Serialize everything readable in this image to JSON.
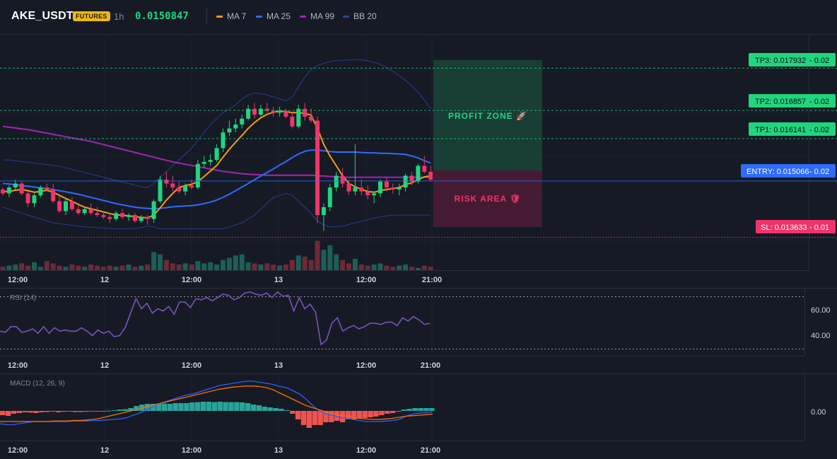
{
  "header": {
    "symbol": "AKE_USDT",
    "market_badge": "FUTURES",
    "interval": "1h",
    "last_price": "0.0150847",
    "indicators": [
      {
        "label": "MA 7",
        "color": "#f39c12"
      },
      {
        "label": "MA 25",
        "color": "#2f6bff"
      },
      {
        "label": "MA 99",
        "color": "#9c27b0"
      },
      {
        "label": "BB 20",
        "color": "#27459a"
      }
    ]
  },
  "levels": {
    "tp3": {
      "label": "TP3: 0.017932",
      "pct": "- 0.02",
      "price": 0.017932
    },
    "tp2": {
      "label": "TP2: 0.016857",
      "pct": "- 0.02",
      "price": 0.016857
    },
    "tp1": {
      "label": "TP1: 0.016141",
      "pct": "- 0.02",
      "price": 0.016141
    },
    "entry": {
      "label": "ENTRY: 0.015066",
      "pct": "- 0.02",
      "price": 0.015066
    },
    "sl": {
      "label": "SL: 0.013633",
      "pct": "- 0.01",
      "price": 0.013633
    }
  },
  "zones": {
    "profit_label": "PROFIT ZONE 🚀",
    "risk_label": "RISK AREA 🛡"
  },
  "time_axis": [
    "12:00",
    "12",
    "12:00",
    "13",
    "12:00",
    "21:00"
  ],
  "rsi": {
    "title": "RSI (14)",
    "axis_labels": [
      "60.00",
      "40.00"
    ],
    "upper": 70,
    "lower": 30,
    "values": [
      42,
      41,
      46,
      46,
      41,
      42,
      44,
      40,
      46,
      40,
      45,
      42,
      43,
      42,
      42,
      45,
      42,
      38,
      43,
      40,
      42,
      37,
      38,
      45,
      58,
      71,
      62,
      67,
      58,
      62,
      60,
      64,
      57,
      68,
      68,
      63,
      71,
      70,
      72,
      69,
      72,
      75,
      74,
      70,
      72,
      76,
      77,
      75,
      74,
      76,
      72,
      77,
      73,
      74,
      60,
      72,
      62,
      66,
      59,
      30,
      34,
      49,
      54,
      42,
      45,
      47,
      44,
      46,
      49,
      49,
      48,
      50,
      50,
      47,
      54,
      51,
      55,
      52,
      48,
      49
    ]
  },
  "macd": {
    "title": "MACD (12, 26, 9)",
    "axis_label": "0.00",
    "histogram": [
      -0.3,
      -0.35,
      -0.2,
      -0.15,
      -0.1,
      -0.12,
      -0.15,
      -0.1,
      -0.08,
      -0.05,
      -0.1,
      -0.06,
      -0.05,
      -0.08,
      -0.08,
      -0.06,
      -0.04,
      -0.04,
      -0.02,
      0.02,
      0.05,
      0.1,
      0.12,
      0.2,
      0.35,
      0.45,
      0.5,
      0.5,
      0.5,
      0.52,
      0.5,
      0.55,
      0.55,
      0.55,
      0.6,
      0.62,
      0.65,
      0.65,
      0.62,
      0.65,
      0.62,
      0.62,
      0.62,
      0.6,
      0.55,
      0.45,
      0.4,
      0.3,
      0.25,
      0.2,
      0.15,
      0.05,
      -0.2,
      -0.6,
      -1.0,
      -1.2,
      -1.0,
      -1.0,
      -0.8,
      -0.8,
      -0.7,
      -0.8,
      -0.6,
      -0.6,
      -0.55,
      -0.5,
      -0.45,
      -0.4,
      -0.3,
      -0.2,
      -0.15,
      -0.05,
      0.1,
      0.15,
      0.2,
      0.2,
      0.2,
      0.2
    ],
    "macd_line": [
      -1.2,
      -1.3,
      -1.3,
      -1.2,
      -1.1,
      -1.0,
      -1.0,
      -1.0,
      -1.0,
      -1.0,
      -1.0,
      -0.95,
      -0.95,
      -0.95,
      -0.9,
      -0.9,
      -0.85,
      -0.8,
      -0.75,
      -0.65,
      -0.4,
      -0.2,
      0.1,
      0.4,
      0.7,
      0.9,
      1.1,
      1.3,
      1.5,
      1.6,
      1.8,
      2.0,
      2.2,
      2.4,
      2.5,
      2.6,
      2.7,
      2.8,
      2.8,
      2.7,
      2.6,
      2.5,
      2.3,
      2.2,
      1.9,
      1.6,
      1.1,
      0.5,
      0.0,
      -0.3,
      -0.4,
      -0.6,
      -0.7,
      -0.8,
      -0.9,
      -1.0,
      -1.0,
      -1.0,
      -0.95,
      -0.9,
      -0.8,
      -0.5,
      -0.3,
      -0.2,
      -0.15,
      -0.1
    ],
    "signal_line": [
      -1.0,
      -1.0,
      -1.0,
      -1.0,
      -1.0,
      -1.0,
      -1.0,
      -1.0,
      -0.95,
      -0.95,
      -0.95,
      -0.9,
      -0.9,
      -0.85,
      -0.8,
      -0.7,
      -0.55,
      -0.4,
      -0.25,
      -0.1,
      0.05,
      0.2,
      0.4,
      0.55,
      0.7,
      0.85,
      1.0,
      1.15,
      1.3,
      1.45,
      1.6,
      1.75,
      1.9,
      2.05,
      2.15,
      2.25,
      2.3,
      2.35,
      2.35,
      2.3,
      2.2,
      2.0,
      1.7,
      1.4,
      1.1,
      0.8,
      0.5,
      0.3,
      0.1,
      -0.1,
      -0.25,
      -0.4,
      -0.5,
      -0.6,
      -0.7,
      -0.75,
      -0.8,
      -0.8,
      -0.75,
      -0.7,
      -0.6,
      -0.5,
      -0.45,
      -0.4,
      -0.35,
      -0.3
    ]
  },
  "chart_data": {
    "type": "candlestick",
    "y_range": [
      0.0128,
      0.0188
    ],
    "candles": [
      [
        0.01485,
        0.0149,
        0.0147,
        0.01475
      ],
      [
        0.01475,
        0.01495,
        0.01465,
        0.0149
      ],
      [
        0.0149,
        0.0151,
        0.01485,
        0.015
      ],
      [
        0.015,
        0.01505,
        0.0147,
        0.01475
      ],
      [
        0.01475,
        0.0148,
        0.0144,
        0.0145
      ],
      [
        0.0145,
        0.01475,
        0.0144,
        0.0147
      ],
      [
        0.0147,
        0.01495,
        0.01465,
        0.0149
      ],
      [
        0.0149,
        0.015,
        0.0148,
        0.01485
      ],
      [
        0.01485,
        0.015,
        0.0145,
        0.01455
      ],
      [
        0.01455,
        0.0147,
        0.01425,
        0.0143
      ],
      [
        0.0143,
        0.0146,
        0.0142,
        0.01455
      ],
      [
        0.01455,
        0.01465,
        0.0143,
        0.01435
      ],
      [
        0.01435,
        0.01445,
        0.0142,
        0.01425
      ],
      [
        0.01425,
        0.0144,
        0.0142,
        0.01435
      ],
      [
        0.01435,
        0.0145,
        0.0142,
        0.01425
      ],
      [
        0.01425,
        0.0144,
        0.01415,
        0.0142
      ],
      [
        0.0142,
        0.0143,
        0.0141,
        0.01415
      ],
      [
        0.01415,
        0.01425,
        0.014,
        0.0141
      ],
      [
        0.0141,
        0.0143,
        0.01405,
        0.01425
      ],
      [
        0.01425,
        0.01435,
        0.0141,
        0.01415
      ],
      [
        0.01415,
        0.01425,
        0.01405,
        0.0142
      ],
      [
        0.0142,
        0.01425,
        0.014,
        0.01405
      ],
      [
        0.01405,
        0.0142,
        0.014,
        0.01415
      ],
      [
        0.01415,
        0.0142,
        0.01395,
        0.0141
      ],
      [
        0.0141,
        0.0146,
        0.014,
        0.01455
      ],
      [
        0.01455,
        0.0152,
        0.0145,
        0.0151
      ],
      [
        0.0151,
        0.0153,
        0.0149,
        0.015
      ],
      [
        0.015,
        0.0152,
        0.0148,
        0.0149
      ],
      [
        0.0149,
        0.01505,
        0.01475,
        0.0148
      ],
      [
        0.0148,
        0.015,
        0.0147,
        0.01495
      ],
      [
        0.01495,
        0.0151,
        0.01485,
        0.0149
      ],
      [
        0.0149,
        0.0156,
        0.01485,
        0.0155
      ],
      [
        0.0155,
        0.0157,
        0.0154,
        0.01555
      ],
      [
        0.01555,
        0.01575,
        0.01545,
        0.0156
      ],
      [
        0.0156,
        0.016,
        0.01555,
        0.0159
      ],
      [
        0.0159,
        0.0164,
        0.0158,
        0.0163
      ],
      [
        0.0163,
        0.0166,
        0.0162,
        0.0164
      ],
      [
        0.0164,
        0.01665,
        0.0163,
        0.0165
      ],
      [
        0.0165,
        0.01675,
        0.0164,
        0.01665
      ],
      [
        0.01665,
        0.017,
        0.0166,
        0.0169
      ],
      [
        0.0169,
        0.01705,
        0.01665,
        0.01675
      ],
      [
        0.01675,
        0.017,
        0.0167,
        0.0169
      ],
      [
        0.0169,
        0.01705,
        0.0168,
        0.01685
      ],
      [
        0.01685,
        0.01695,
        0.0167,
        0.0168
      ],
      [
        0.0168,
        0.01695,
        0.0167,
        0.01685
      ],
      [
        0.01685,
        0.0169,
        0.01665,
        0.0167
      ],
      [
        0.0167,
        0.0168,
        0.0164,
        0.01645
      ],
      [
        0.01645,
        0.017,
        0.0164,
        0.0169
      ],
      [
        0.0169,
        0.01705,
        0.0166,
        0.0167
      ],
      [
        0.0167,
        0.0169,
        0.01655,
        0.0166
      ],
      [
        0.0166,
        0.0167,
        0.014,
        0.0142
      ],
      [
        0.0142,
        0.0145,
        0.0138,
        0.0144
      ],
      [
        0.0144,
        0.015,
        0.0143,
        0.0149
      ],
      [
        0.0149,
        0.0153,
        0.0148,
        0.0152
      ],
      [
        0.0152,
        0.0154,
        0.0149,
        0.015
      ],
      [
        0.015,
        0.0151,
        0.0147,
        0.0148
      ],
      [
        0.0148,
        0.016,
        0.0147,
        0.0149
      ],
      [
        0.0149,
        0.0151,
        0.0147,
        0.0148
      ],
      [
        0.0148,
        0.01495,
        0.0146,
        0.0147
      ],
      [
        0.0147,
        0.0148,
        0.0145,
        0.01475
      ],
      [
        0.01475,
        0.0151,
        0.01465,
        0.01505
      ],
      [
        0.01505,
        0.01515,
        0.0148,
        0.0149
      ],
      [
        0.0149,
        0.015,
        0.01475,
        0.01485
      ],
      [
        0.01485,
        0.015,
        0.0147,
        0.0149
      ],
      [
        0.0149,
        0.01525,
        0.0148,
        0.0152
      ],
      [
        0.0152,
        0.0153,
        0.01495,
        0.01505
      ],
      [
        0.01505,
        0.0155,
        0.015,
        0.01545
      ],
      [
        0.01545,
        0.0157,
        0.01525,
        0.0153
      ],
      [
        0.0153,
        0.01545,
        0.01505,
        0.0151
      ]
    ],
    "volume": [
      3,
      4,
      5,
      6,
      4,
      7,
      3,
      8,
      6,
      4,
      3,
      5,
      4,
      3,
      5,
      4,
      3,
      4,
      3,
      4,
      5,
      3,
      4,
      5,
      16,
      14,
      9,
      6,
      5,
      6,
      5,
      8,
      6,
      7,
      5,
      9,
      11,
      13,
      14,
      7,
      6,
      5,
      6,
      5,
      4,
      5,
      9,
      13,
      12,
      9,
      26,
      18,
      22,
      14,
      9,
      6,
      10,
      5,
      4,
      5,
      6,
      4,
      3,
      4,
      5,
      3,
      2,
      4,
      3
    ],
    "ma7": [
      0.0148,
      0.0148,
      0.01483,
      0.01485,
      0.01482,
      0.01478,
      0.0148,
      0.01483,
      0.01478,
      0.0147,
      0.01462,
      0.01455,
      0.01447,
      0.0144,
      0.01436,
      0.01432,
      0.01428,
      0.01424,
      0.0142,
      0.0142,
      0.01418,
      0.01416,
      0.01414,
      0.01413,
      0.0142,
      0.01438,
      0.01458,
      0.01475,
      0.0149,
      0.01495,
      0.01498,
      0.01505,
      0.01518,
      0.01532,
      0.01546,
      0.01567,
      0.01587,
      0.01605,
      0.01622,
      0.0164,
      0.01655,
      0.01667,
      0.01676,
      0.01681,
      0.01684,
      0.01683,
      0.0168,
      0.0168,
      0.01678,
      0.01674,
      0.0164,
      0.016,
      0.0157,
      0.01545,
      0.0152,
      0.015,
      0.01492,
      0.01485,
      0.0148,
      0.01478,
      0.01482,
      0.01485,
      0.01487,
      0.0149,
      0.01497,
      0.01502,
      0.0151,
      0.01517,
      0.0152
    ],
    "ma25": [
      0.015,
      0.01499,
      0.01497,
      0.01495,
      0.01493,
      0.01491,
      0.01489,
      0.01487,
      0.01485,
      0.01482,
      0.01479,
      0.01476,
      0.01473,
      0.01469,
      0.01465,
      0.01461,
      0.01457,
      0.01453,
      0.01449,
      0.01446,
      0.01443,
      0.0144,
      0.01438,
      0.01437,
      0.01436,
      0.01437,
      0.01439,
      0.01441,
      0.01442,
      0.01443,
      0.01444,
      0.01446,
      0.01449,
      0.01453,
      0.01458,
      0.01465,
      0.01473,
      0.01482,
      0.01491,
      0.015,
      0.0151,
      0.01519,
      0.01528,
      0.01537,
      0.01547,
      0.01556,
      0.01566,
      0.01575,
      0.01582,
      0.01585,
      0.01585,
      0.01583,
      0.01581,
      0.0158,
      0.0158,
      0.0158,
      0.0158,
      0.01579,
      0.01578,
      0.01578,
      0.01577,
      0.01577,
      0.01576,
      0.01575,
      0.01574,
      0.0157,
      0.01565,
      0.01558,
      0.01552
    ],
    "ma99": [
      0.01645,
      0.01643,
      0.01641,
      0.01639,
      0.01637,
      0.01634,
      0.01631,
      0.01628,
      0.01625,
      0.01622,
      0.01619,
      0.01616,
      0.01613,
      0.0161,
      0.01607,
      0.01603,
      0.01599,
      0.01595,
      0.01591,
      0.01587,
      0.01583,
      0.01579,
      0.01575,
      0.01571,
      0.01567,
      0.01563,
      0.01559,
      0.01555,
      0.01552,
      0.01549,
      0.01546,
      0.01543,
      0.0154,
      0.01537,
      0.01534,
      0.01531,
      0.01529,
      0.01527,
      0.01525,
      0.01524,
      0.01523,
      0.01522,
      0.01521,
      0.01521,
      0.01521,
      0.01521,
      0.01521,
      0.01521,
      0.01521,
      0.01521,
      0.0152,
      0.01519,
      0.01518,
      0.01517,
      0.01516,
      0.01516,
      0.01516,
      0.01516,
      0.01516,
      0.01516,
      0.01516,
      0.01516,
      0.01516,
      0.01516,
      0.01516,
      0.01516,
      0.01516,
      0.01516,
      0.01516
    ],
    "bb_upper": [
      0.0156,
      0.0156,
      0.01558,
      0.01556,
      0.01554,
      0.01552,
      0.0155,
      0.01548,
      0.01546,
      0.01544,
      0.0154,
      0.01536,
      0.01532,
      0.01528,
      0.01524,
      0.0152,
      0.01516,
      0.01512,
      0.01508,
      0.01504,
      0.015,
      0.01496,
      0.01492,
      0.0149,
      0.015,
      0.01515,
      0.0153,
      0.01545,
      0.0156,
      0.01575,
      0.0159,
      0.0161,
      0.0163,
      0.0165,
      0.01665,
      0.0168,
      0.0169,
      0.017,
      0.01715,
      0.01725,
      0.0173,
      0.01728,
      0.01725,
      0.0172,
      0.01715,
      0.0171,
      0.0172,
      0.01745,
      0.0177,
      0.0179,
      0.018,
      0.01805,
      0.0181,
      0.01812,
      0.01813,
      0.01814,
      0.01815,
      0.01814,
      0.01812,
      0.01808,
      0.01803,
      0.01795,
      0.01785,
      0.01775,
      0.01762,
      0.01748,
      0.01732,
      0.01712,
      0.0169
    ],
    "bb_lower": [
      0.0144,
      0.01435,
      0.0143,
      0.01425,
      0.0142,
      0.01415,
      0.0141,
      0.01405,
      0.014,
      0.01398,
      0.01396,
      0.01394,
      0.01392,
      0.0139,
      0.01389,
      0.01388,
      0.01387,
      0.01386,
      0.01385,
      0.01385,
      0.01385,
      0.01386,
      0.01388,
      0.01392,
      0.0139,
      0.01385,
      0.01385,
      0.01385,
      0.01385,
      0.01385,
      0.01385,
      0.01385,
      0.01385,
      0.01385,
      0.01385,
      0.01385,
      0.0139,
      0.01395,
      0.014,
      0.0141,
      0.0142,
      0.01435,
      0.0145,
      0.01465,
      0.0147,
      0.01475,
      0.0147,
      0.01455,
      0.0144,
      0.01425,
      0.01405,
      0.01395,
      0.0139,
      0.0139,
      0.01392,
      0.01396,
      0.014,
      0.01404,
      0.01408,
      0.01412,
      0.01416,
      0.01418,
      0.0142,
      0.0142,
      0.0142,
      0.0142,
      0.0142,
      0.0142,
      0.0142
    ]
  }
}
